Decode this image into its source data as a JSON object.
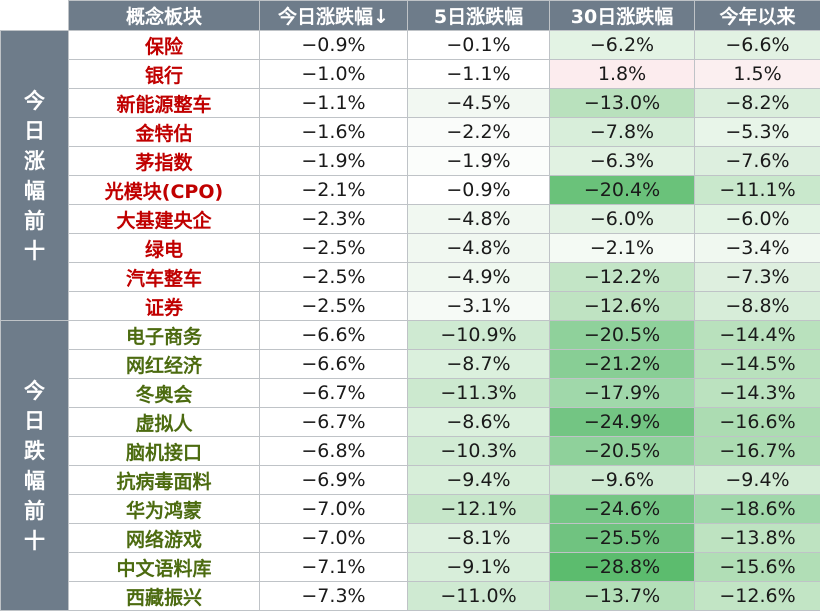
{
  "header": {
    "name": "概念板块",
    "today": "今日涨跌幅↓",
    "d5": "5日涨跌幅",
    "d30": "30日涨跌幅",
    "ytd": "今年以来"
  },
  "groups": [
    {
      "label": [
        "今",
        "日",
        "涨",
        "幅",
        "前",
        "十"
      ],
      "direction": "up",
      "rows": [
        {
          "name": "保险",
          "today": "−0.9%",
          "d5": "−0.1%",
          "d30": "−6.2%",
          "ytd": "−6.6%",
          "bg": [
            "#ffffff",
            "#ffffff",
            "#e3f3e4",
            "#e2f2e3"
          ]
        },
        {
          "name": "银行",
          "today": "−1.0%",
          "d5": "−1.1%",
          "d30": "1.8%",
          "ytd": "1.5%",
          "bg": [
            "#ffffff",
            "#ffffff",
            "#fcecee",
            "#fbeff0"
          ]
        },
        {
          "name": "新能源整车",
          "today": "−1.1%",
          "d5": "−4.5%",
          "d30": "−13.0%",
          "ytd": "−8.2%",
          "bg": [
            "#ffffff",
            "#f2f8f2",
            "#b9e1bd",
            "#daeedc"
          ]
        },
        {
          "name": "金特估",
          "today": "−1.6%",
          "d5": "−2.2%",
          "d30": "−7.8%",
          "ytd": "−5.3%",
          "bg": [
            "#ffffff",
            "#fafcfa",
            "#d8eeda",
            "#e8f5e9"
          ]
        },
        {
          "name": "茅指数",
          "today": "−1.9%",
          "d5": "−1.9%",
          "d30": "−6.3%",
          "ytd": "−7.6%",
          "bg": [
            "#ffffff",
            "#fbfdfb",
            "#e1f2e2",
            "#ddefdf"
          ]
        },
        {
          "name": "光模块(CPO)",
          "today": "−2.1%",
          "d5": "−0.9%",
          "d30": "−20.4%",
          "ytd": "−11.1%",
          "bg": [
            "#ffffff",
            "#ffffff",
            "#6ac27a",
            "#c9e8cc"
          ]
        },
        {
          "name": "大基建央企",
          "today": "−2.3%",
          "d5": "−4.8%",
          "d30": "−6.0%",
          "ytd": "−6.0%",
          "bg": [
            "#ffffff",
            "#f1f8f1",
            "#e2f2e3",
            "#e3f3e4"
          ]
        },
        {
          "name": "绿电",
          "today": "−2.5%",
          "d5": "−4.8%",
          "d30": "−2.1%",
          "ytd": "−3.4%",
          "bg": [
            "#ffffff",
            "#f1f8f1",
            "#f4faf4",
            "#f0f8f0"
          ]
        },
        {
          "name": "汽车整车",
          "today": "−2.5%",
          "d5": "−4.9%",
          "d30": "−12.2%",
          "ytd": "−7.3%",
          "bg": [
            "#ffffff",
            "#f0f8f0",
            "#c3e5c6",
            "#deefdf"
          ]
        },
        {
          "name": "证券",
          "today": "−2.5%",
          "d5": "−3.1%",
          "d30": "−12.6%",
          "ytd": "−8.8%",
          "bg": [
            "#ffffff",
            "#f6faf6",
            "#bfe3c2",
            "#d7edd9"
          ]
        }
      ]
    },
    {
      "label": [
        "今",
        "日",
        "跌",
        "幅",
        "前",
        "十"
      ],
      "direction": "down",
      "rows": [
        {
          "name": "电子商务",
          "today": "−6.6%",
          "d5": "−10.9%",
          "d30": "−20.5%",
          "ytd": "−14.4%",
          "bg": [
            "#ffffff",
            "#cfead2",
            "#8fd19b",
            "#b9e1bd"
          ]
        },
        {
          "name": "网红经济",
          "today": "−6.6%",
          "d5": "−8.7%",
          "d30": "−21.2%",
          "ytd": "−14.5%",
          "bg": [
            "#ffffff",
            "#dbf0dd",
            "#88ce95",
            "#b9e1bd"
          ]
        },
        {
          "name": "冬奥会",
          "today": "−6.7%",
          "d5": "−11.3%",
          "d30": "−17.9%",
          "ytd": "−14.3%",
          "bg": [
            "#ffffff",
            "#cce9cf",
            "#a0d8aa",
            "#bbe2bf"
          ]
        },
        {
          "name": "虚拟人",
          "today": "−6.7%",
          "d5": "−8.6%",
          "d30": "−24.9%",
          "ytd": "−16.6%",
          "bg": [
            "#ffffff",
            "#dbf0dd",
            "#73c583",
            "#acdcb2"
          ]
        },
        {
          "name": "脑机接口",
          "today": "−6.8%",
          "d5": "−10.3%",
          "d30": "−20.5%",
          "ytd": "−16.7%",
          "bg": [
            "#ffffff",
            "#d1ebd4",
            "#8fd19b",
            "#acdcb2"
          ]
        },
        {
          "name": "抗病毒面料",
          "today": "−6.9%",
          "d5": "−9.4%",
          "d30": "−9.6%",
          "ytd": "−9.4%",
          "bg": [
            "#ffffff",
            "#d7eed9",
            "#cfead2",
            "#d3ecd5"
          ]
        },
        {
          "name": "华为鸿蒙",
          "today": "−7.0%",
          "d5": "−12.1%",
          "d30": "−24.6%",
          "ytd": "−18.6%",
          "bg": [
            "#ffffff",
            "#c6e6c9",
            "#75c685",
            "#a0d8aa"
          ]
        },
        {
          "name": "网络游戏",
          "today": "−7.0%",
          "d5": "−8.1%",
          "d30": "−25.5%",
          "ytd": "−13.8%",
          "bg": [
            "#ffffff",
            "#ddf0df",
            "#70c380",
            "#bee3c1"
          ]
        },
        {
          "name": "中文语料库",
          "today": "−7.1%",
          "d5": "−9.1%",
          "d30": "−28.8%",
          "ytd": "−15.6%",
          "bg": [
            "#ffffff",
            "#d8eeda",
            "#5cbc6e",
            "#b1deb6"
          ]
        },
        {
          "name": "西藏振兴",
          "today": "−7.3%",
          "d5": "−11.0%",
          "d30": "−13.7%",
          "ytd": "−12.6%",
          "bg": [
            "#ffffff",
            "#cfead2",
            "#b3dfb8",
            "#c2e5c5"
          ]
        }
      ]
    }
  ]
}
